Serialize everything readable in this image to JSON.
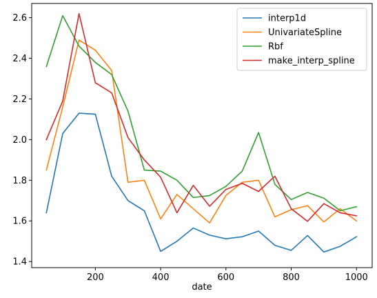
{
  "chart_data": {
    "type": "line",
    "title": "",
    "xlabel": "date",
    "ylabel": "",
    "xlim": [
      5,
      1048
    ],
    "ylim": [
      1.37,
      2.67
    ],
    "xticks": [
      200,
      400,
      600,
      800,
      1000
    ],
    "yticks": [
      1.4,
      1.6,
      1.8,
      2.0,
      2.2,
      2.4,
      2.6
    ],
    "grid": false,
    "legend_position": "top-right",
    "x": [
      50,
      100,
      150,
      200,
      250,
      300,
      350,
      400,
      450,
      500,
      550,
      600,
      650,
      700,
      750,
      800,
      850,
      900,
      950,
      1000
    ],
    "series": [
      {
        "name": "interp1d",
        "color": "#1f77b4",
        "values": [
          1.64,
          2.03,
          2.13,
          2.125,
          1.82,
          1.7,
          1.65,
          1.45,
          1.5,
          1.565,
          1.53,
          1.512,
          1.522,
          1.55,
          1.48,
          1.455,
          1.528,
          1.447,
          1.475,
          1.522
        ]
      },
      {
        "name": "UnivariateSpline",
        "color": "#ff7f0e",
        "values": [
          1.85,
          2.16,
          2.49,
          2.44,
          2.34,
          1.79,
          1.8,
          1.61,
          1.73,
          1.66,
          1.59,
          1.725,
          1.79,
          1.8,
          1.62,
          1.655,
          1.675,
          1.595,
          1.66,
          1.6
        ]
      },
      {
        "name": "Rbf",
        "color": "#2ca02c",
        "values": [
          2.36,
          2.61,
          2.46,
          2.38,
          2.32,
          2.14,
          1.85,
          1.845,
          1.8,
          1.715,
          1.725,
          1.77,
          1.845,
          2.035,
          1.78,
          1.705,
          1.74,
          1.712,
          1.65,
          1.67
        ]
      },
      {
        "name": "make_interp_spline",
        "color": "#d62728",
        "values": [
          2.0,
          2.19,
          2.62,
          2.28,
          2.23,
          2.01,
          1.9,
          1.815,
          1.64,
          1.775,
          1.672,
          1.755,
          1.785,
          1.745,
          1.82,
          1.66,
          1.598,
          1.685,
          1.64,
          1.625
        ]
      }
    ]
  }
}
